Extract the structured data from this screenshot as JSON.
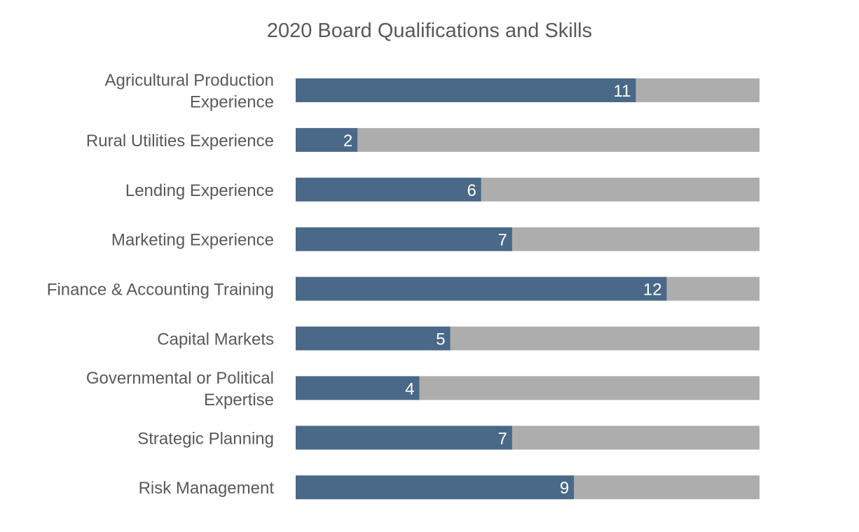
{
  "chart_data": {
    "type": "bar",
    "orientation": "horizontal",
    "stacked": true,
    "title": "2020 Board Qualifications and Skills",
    "categories": [
      [
        "Agricultural Production",
        "Experience"
      ],
      [
        "Rural Utilities Experience"
      ],
      [
        "Lending Experience"
      ],
      [
        "Marketing Experience"
      ],
      [
        "Finance & Accounting Training"
      ],
      [
        "Capital Markets"
      ],
      [
        "Governmental or Political",
        "Expertise"
      ],
      [
        "Strategic Planning"
      ],
      [
        "Risk Management"
      ]
    ],
    "values": [
      11,
      2,
      6,
      7,
      12,
      5,
      4,
      7,
      9
    ],
    "total": 15,
    "xlim": [
      0,
      15
    ],
    "grid": false,
    "legend": "none",
    "colors": {
      "value_bar": "#4a6988",
      "remainder_bar": "#adadad",
      "text": "#595959",
      "value_label": "#ffffff"
    }
  }
}
